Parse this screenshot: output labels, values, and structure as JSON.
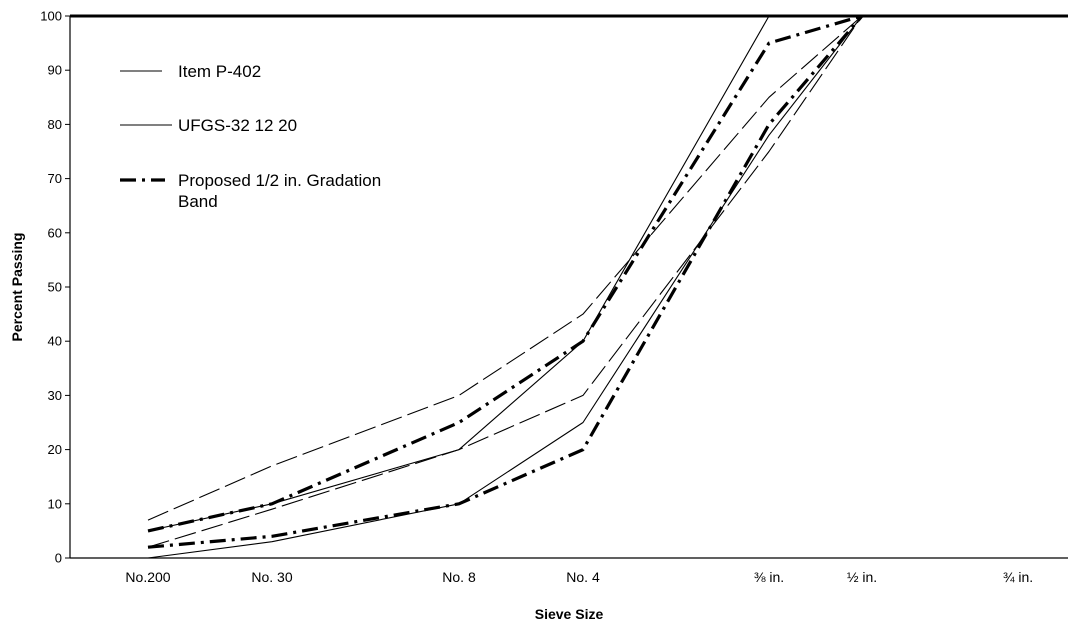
{
  "chart_data": {
    "type": "line",
    "title": "",
    "xlabel": "Sieve Size",
    "ylabel": "Percent Passing",
    "ylim": [
      0,
      100
    ],
    "yticks": [
      0,
      10,
      20,
      30,
      40,
      50,
      60,
      70,
      80,
      90,
      100
    ],
    "categories": [
      "No.200",
      "No. 30",
      "No. 8",
      "No. 4",
      "⅜ in.",
      "½ in.",
      "¾ in."
    ],
    "grid": false,
    "legend_position": "top-left",
    "legend": [
      {
        "label": "Item P-402",
        "style": "long-dash"
      },
      {
        "label": "UFGS-32 12 20",
        "style": "solid"
      },
      {
        "label": "Proposed 1/2 in. Gradation",
        "label2": "Band",
        "style": "dash-dot-bold"
      }
    ],
    "series": [
      {
        "name": "Item P-402 (upper)",
        "style": "long-dash",
        "x": [
          0,
          1,
          2,
          3,
          4,
          5,
          6
        ],
        "values": [
          7,
          17,
          30,
          45,
          85,
          100,
          100
        ]
      },
      {
        "name": "Item P-402 (lower)",
        "style": "long-dash",
        "x": [
          0,
          1,
          2,
          3,
          4,
          5,
          6
        ],
        "values": [
          2,
          9,
          20,
          30,
          75,
          100,
          100
        ]
      },
      {
        "name": "UFGS-32 12 20 (upper)",
        "style": "solid",
        "x": [
          0,
          1,
          2,
          3,
          4,
          5,
          6
        ],
        "values": [
          5,
          10,
          20,
          40,
          100,
          100,
          100
        ]
      },
      {
        "name": "UFGS-32 12 20 (lower)",
        "style": "solid",
        "x": [
          0,
          1,
          2,
          3,
          4,
          5,
          6
        ],
        "values": [
          0,
          3,
          10,
          25,
          78,
          100,
          100
        ]
      },
      {
        "name": "Proposed 1/2 in. Gradation Band (upper)",
        "style": "dash-dot-bold",
        "x": [
          0,
          1,
          2,
          3,
          4,
          5
        ],
        "values": [
          5,
          10,
          25,
          40,
          95,
          100
        ]
      },
      {
        "name": "Proposed 1/2 in. Gradation Band (lower)",
        "style": "dash-dot-bold",
        "x": [
          0,
          1,
          2,
          3,
          4,
          5
        ],
        "values": [
          2,
          4,
          10,
          20,
          80,
          100
        ]
      }
    ]
  }
}
